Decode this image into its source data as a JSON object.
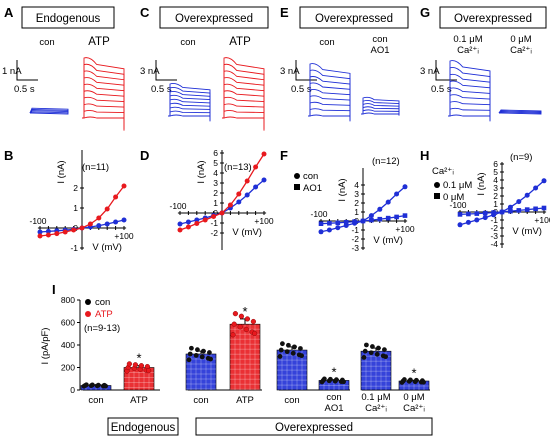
{
  "colors": {
    "control": "#1f2fd6",
    "treat": "#e8191e",
    "black": "#000000"
  },
  "panels": {
    "A": {
      "letter": "A",
      "title": "Endogenous",
      "cond1": "con",
      "cond2": "ATP",
      "scale_i": "1 nA",
      "scale_t": "0.5 s"
    },
    "C": {
      "letter": "C",
      "title": "Overexpressed",
      "cond1": "con",
      "cond2": "ATP",
      "scale_i": "3 nA",
      "scale_t": "0.5 s"
    },
    "E": {
      "letter": "E",
      "title": "Overexpressed",
      "cond1": "con",
      "cond2a": "con",
      "cond2b": "AO1",
      "scale_i": "3 nA",
      "scale_t": "0.5 s"
    },
    "G": {
      "letter": "G",
      "title": "Overexpressed",
      "cond1a": "0.1 μM",
      "cond1b": "Ca²⁺ᵢ",
      "cond2a": "0 μM",
      "cond2b": "Ca²⁺ᵢ",
      "scale_i": "3 nA",
      "scale_t": "0.5 s"
    }
  },
  "chart_data": [
    {
      "panel": "B",
      "type": "line",
      "ylabel": "I (nA)",
      "xlabel": "V (mV)",
      "n": "(n=11)",
      "yticks": [
        "-1",
        "0",
        "1",
        "2"
      ],
      "xticks": [
        "-100",
        "+100"
      ],
      "x": [
        -100,
        -80,
        -60,
        -40,
        -20,
        0,
        20,
        40,
        60,
        80,
        100
      ],
      "series": [
        {
          "role": "control",
          "values": [
            -0.2,
            -0.17,
            -0.14,
            -0.11,
            -0.07,
            0,
            0.05,
            0.12,
            0.2,
            0.3,
            0.4
          ]
        },
        {
          "role": "treat",
          "values": [
            -0.4,
            -0.35,
            -0.28,
            -0.2,
            -0.1,
            0,
            0.2,
            0.5,
            0.95,
            1.55,
            2.1
          ]
        }
      ]
    },
    {
      "panel": "D",
      "type": "line",
      "ylabel": "I (nA)",
      "xlabel": "V (mV)",
      "n": "(n=13)",
      "yticks": [
        "-2",
        "-1",
        "0",
        "1",
        "2",
        "3",
        "4",
        "5",
        "6"
      ],
      "xticks": [
        "-100",
        "+100"
      ],
      "x": [
        -100,
        -80,
        -60,
        -40,
        -20,
        0,
        20,
        40,
        60,
        80,
        100
      ],
      "series": [
        {
          "role": "control",
          "values": [
            -1.1,
            -0.9,
            -0.7,
            -0.5,
            -0.25,
            0,
            0.5,
            1.1,
            1.8,
            2.6,
            3.3
          ]
        },
        {
          "role": "treat",
          "values": [
            -1.7,
            -1.4,
            -1.05,
            -0.7,
            -0.35,
            0,
            0.8,
            1.9,
            3.2,
            4.6,
            5.9
          ]
        }
      ]
    },
    {
      "panel": "F",
      "type": "line",
      "ylabel": "I (nA)",
      "xlabel": "V (mV)",
      "n": "(n=12)",
      "yticks": [
        "-3",
        "-2",
        "-1",
        "0",
        "1",
        "2",
        "3",
        "4"
      ],
      "xticks": [
        "-100",
        "+100"
      ],
      "legend": [
        "con",
        "AO1"
      ],
      "x": [
        -100,
        -80,
        -60,
        -40,
        -20,
        0,
        20,
        40,
        60,
        80,
        100
      ],
      "series": [
        {
          "role": "control",
          "values": [
            -1.2,
            -1.0,
            -0.75,
            -0.5,
            -0.25,
            0,
            0.6,
            1.3,
            2.1,
            3.0,
            3.8
          ]
        },
        {
          "role": "treat",
          "values": [
            -0.3,
            -0.25,
            -0.2,
            -0.14,
            -0.07,
            0,
            0.1,
            0.2,
            0.32,
            0.45,
            0.6
          ]
        }
      ]
    },
    {
      "panel": "H",
      "type": "line",
      "ylabel": "I (nA)",
      "xlabel": "V (mV)",
      "n": "(n=9)",
      "yticks": [
        "-4",
        "-3",
        "-2",
        "-1",
        "0",
        "1",
        "2",
        "3",
        "4",
        "5",
        "6"
      ],
      "xticks": [
        "-100",
        "+100"
      ],
      "legend_title": "Ca²⁺ᵢ",
      "legend": [
        "0.1 μM",
        "0   μM"
      ],
      "x": [
        -100,
        -80,
        -60,
        -40,
        -20,
        0,
        20,
        40,
        60,
        80,
        100
      ],
      "series": [
        {
          "role": "control",
          "values": [
            -1.6,
            -1.3,
            -1.0,
            -0.7,
            -0.35,
            0,
            0.6,
            1.3,
            2.1,
            3.0,
            3.9
          ]
        },
        {
          "role": "treat",
          "values": [
            -0.3,
            -0.25,
            -0.2,
            -0.14,
            -0.07,
            0,
            0.1,
            0.2,
            0.3,
            0.4,
            0.5
          ]
        }
      ]
    },
    {
      "panel": "I",
      "type": "bar",
      "ylabel": "I (pA/pF)",
      "n": "(n=9-13)",
      "legend": [
        "con",
        "ATP"
      ],
      "yticks": [
        "0",
        "200",
        "400",
        "600",
        "800"
      ],
      "ylim": [
        0,
        800
      ],
      "bars": [
        {
          "label": "con",
          "label2": "",
          "value": 40,
          "role": "control",
          "sig": false
        },
        {
          "label": "ATP",
          "label2": "",
          "value": 200,
          "role": "treat",
          "sig": true
        },
        {
          "label": "con",
          "label2": "",
          "value": 320,
          "role": "control",
          "sig": false
        },
        {
          "label": "ATP",
          "label2": "",
          "value": 585,
          "role": "treat",
          "sig": true
        },
        {
          "label": "con",
          "label2": "",
          "value": 355,
          "role": "control",
          "sig": false
        },
        {
          "label": "con",
          "label2": "AO1",
          "value": 85,
          "role": "control",
          "sig": true
        },
        {
          "label": "0.1 μM",
          "label2": "Ca²⁺ᵢ",
          "value": 345,
          "role": "control",
          "sig": false
        },
        {
          "label": "0 μM",
          "label2": "Ca²⁺ᵢ",
          "value": 80,
          "role": "control",
          "sig": true
        }
      ],
      "groups": [
        "Endogenous",
        "Overexpressed"
      ]
    }
  ],
  "labels": {
    "B": "B",
    "D": "D",
    "F": "F",
    "H": "H",
    "I": "I",
    "sig": "*"
  }
}
